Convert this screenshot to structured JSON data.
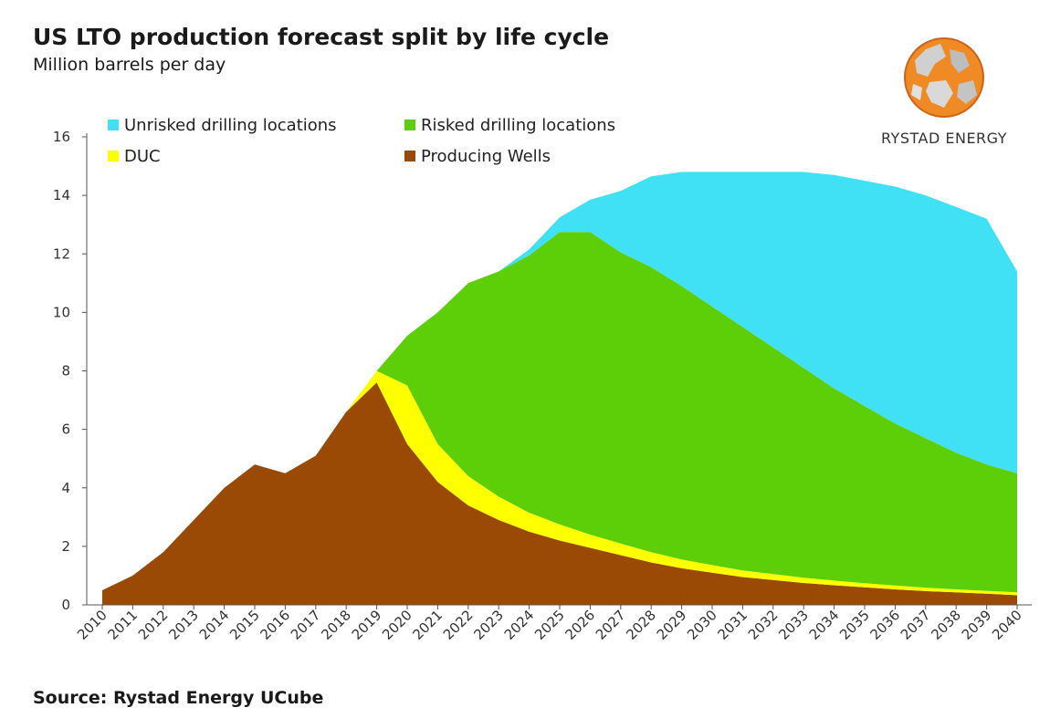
{
  "header": {
    "title": "US LTO production forecast split by life cycle",
    "subtitle": "Million barrels per day"
  },
  "footer": {
    "source": "Source: Rystad Energy UCube"
  },
  "logo": {
    "text": "RYSTAD ENERGY"
  },
  "chart_data": {
    "type": "area",
    "stacked": true,
    "ylim": [
      0,
      16
    ],
    "yticks": [
      0,
      2,
      4,
      6,
      8,
      10,
      12,
      14,
      16
    ],
    "legend_position": "top-left",
    "grid": false,
    "x": [
      2010,
      2011,
      2012,
      2013,
      2014,
      2015,
      2016,
      2017,
      2018,
      2019,
      2020,
      2021,
      2022,
      2023,
      2024,
      2025,
      2026,
      2027,
      2028,
      2029,
      2030,
      2031,
      2032,
      2033,
      2034,
      2035,
      2036,
      2037,
      2038,
      2039,
      2040
    ],
    "series": [
      {
        "name": "Producing Wells",
        "color": "#9a4a04",
        "values": [
          0.5,
          1.0,
          1.8,
          2.9,
          4.0,
          4.8,
          4.5,
          5.1,
          6.6,
          7.6,
          5.5,
          4.2,
          3.4,
          2.9,
          2.5,
          2.2,
          1.95,
          1.7,
          1.45,
          1.25,
          1.1,
          0.95,
          0.85,
          0.75,
          0.67,
          0.6,
          0.53,
          0.47,
          0.43,
          0.38,
          0.33
        ]
      },
      {
        "name": "DUC",
        "color": "#ffff00",
        "values": [
          0,
          0,
          0,
          0,
          0,
          0,
          0,
          0,
          0,
          0.4,
          2.0,
          1.3,
          1.0,
          0.8,
          0.65,
          0.55,
          0.45,
          0.4,
          0.35,
          0.3,
          0.26,
          0.23,
          0.2,
          0.18,
          0.16,
          0.14,
          0.13,
          0.12,
          0.1,
          0.1,
          0.1
        ]
      },
      {
        "name": "Risked drilling locations",
        "color": "#5ccf08",
        "values": [
          0,
          0,
          0,
          0,
          0,
          0,
          0,
          0,
          0,
          0,
          1.7,
          4.5,
          6.6,
          7.7,
          8.8,
          10.0,
          10.35,
          9.95,
          9.75,
          9.35,
          8.84,
          8.32,
          7.75,
          7.17,
          6.57,
          6.06,
          5.54,
          5.11,
          4.67,
          4.32,
          4.07
        ]
      },
      {
        "name": "Unrisked drilling locations",
        "color": "#41e1f5",
        "values": [
          0,
          0,
          0,
          0,
          0,
          0,
          0,
          0,
          0,
          0,
          0,
          0,
          0,
          0,
          0.2,
          0.5,
          1.1,
          2.1,
          3.1,
          3.9,
          4.6,
          5.3,
          6.0,
          6.7,
          7.3,
          7.7,
          8.1,
          8.3,
          8.4,
          8.4,
          6.9
        ]
      }
    ],
    "legend_order": [
      "Unrisked drilling locations",
      "Risked drilling locations",
      "DUC",
      "Producing Wells"
    ]
  }
}
